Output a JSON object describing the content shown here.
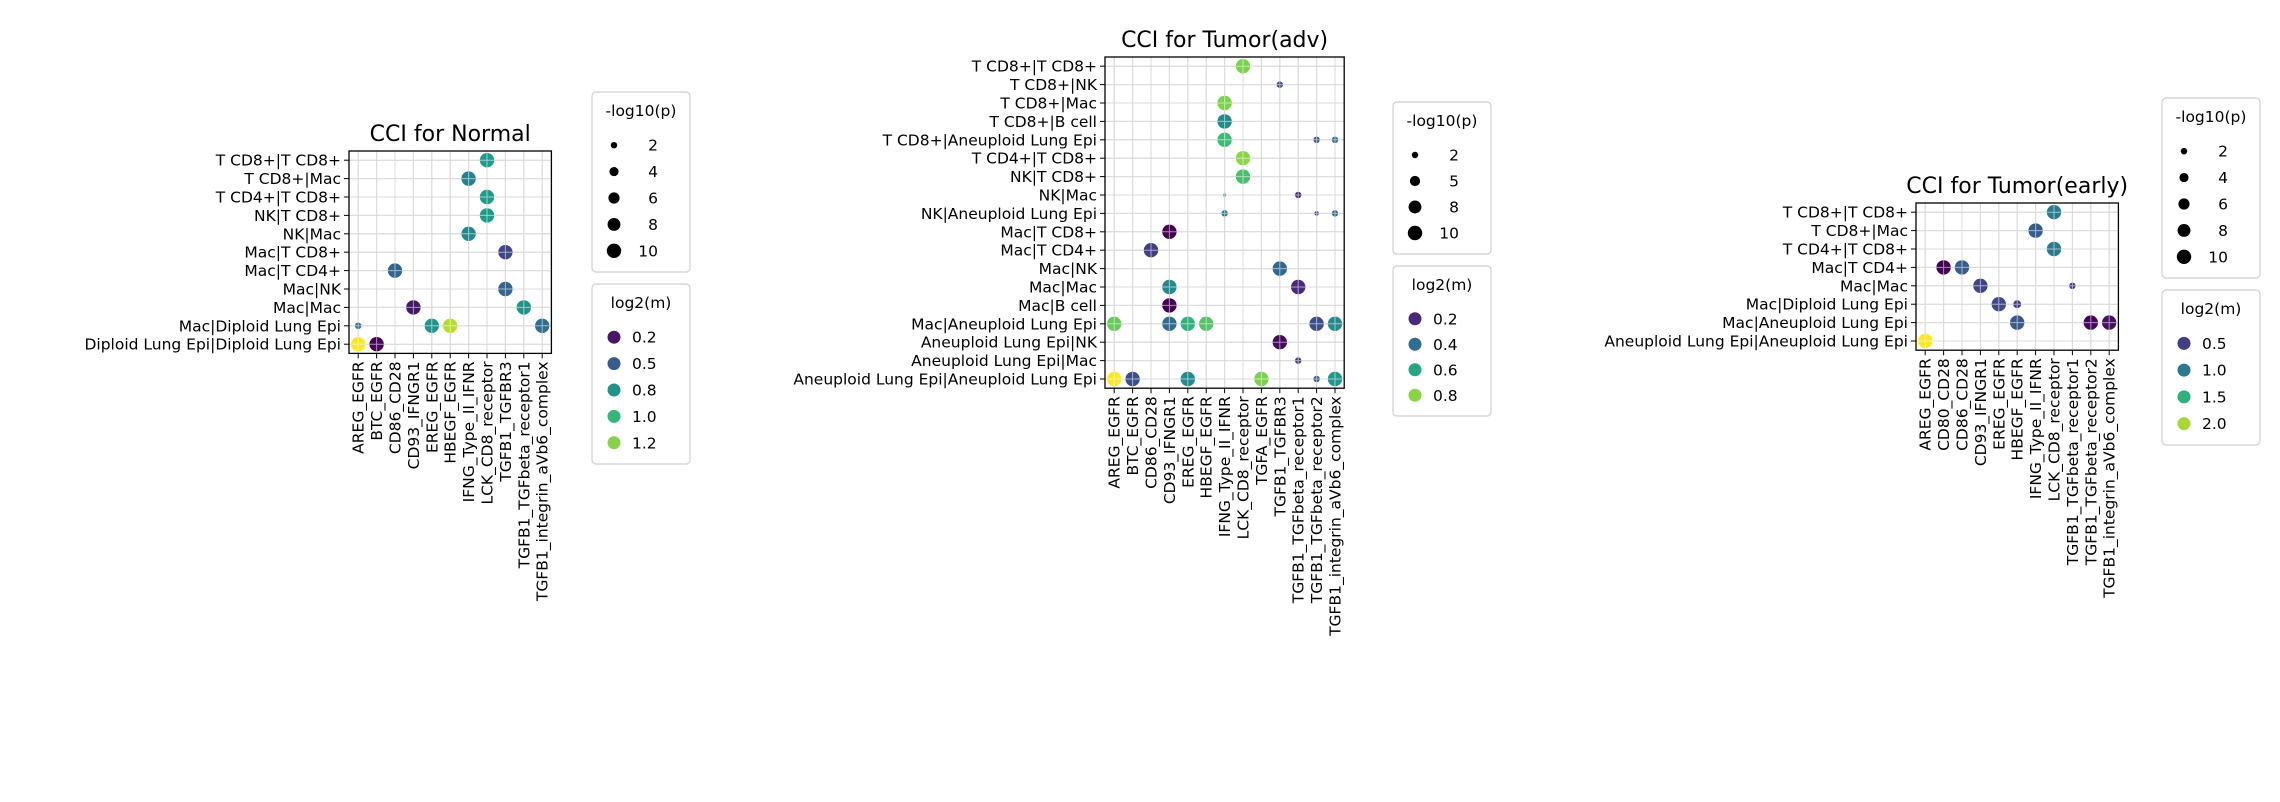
{
  "chart_data": [
    {
      "type": "scatter",
      "title": "CCI for Normal",
      "x_categories": [
        "AREG_EGFR",
        "BTC_EGFR",
        "CD86_CD28",
        "CD93_IFNGR1",
        "EREG_EGFR",
        "HBEGF_EGFR",
        "IFNG_Type_II_IFNR",
        "LCK_CD8_receptor",
        "TGFB1_TGFBR3",
        "TGFB1_TGFbeta_receptor1",
        "TGFB1_integrin_aVb6_complex"
      ],
      "y_categories": [
        "T CD8+|T CD8+",
        "T CD8+|Mac",
        "T CD4+|T CD8+",
        "NK|T CD8+",
        "NK|Mac",
        "Mac|T CD8+",
        "Mac|T CD4+",
        "Mac|NK",
        "Mac|Mac",
        "Mac|Diploid Lung Epi",
        "Diploid Lung Epi|Diploid Lung Epi"
      ],
      "points": [
        {
          "x": "LCK_CD8_receptor",
          "y": "T CD8+|T CD8+",
          "neglog10p": 10,
          "log2m": 0.85
        },
        {
          "x": "IFNG_Type_II_IFNR",
          "y": "T CD8+|Mac",
          "neglog10p": 10,
          "log2m": 0.7
        },
        {
          "x": "LCK_CD8_receptor",
          "y": "T CD4+|T CD8+",
          "neglog10p": 10,
          "log2m": 0.85
        },
        {
          "x": "LCK_CD8_receptor",
          "y": "NK|T CD8+",
          "neglog10p": 10,
          "log2m": 0.85
        },
        {
          "x": "IFNG_Type_II_IFNR",
          "y": "NK|Mac",
          "neglog10p": 10,
          "log2m": 0.75
        },
        {
          "x": "TGFB1_TGFBR3",
          "y": "Mac|T CD8+",
          "neglog10p": 10,
          "log2m": 0.4
        },
        {
          "x": "CD86_CD28",
          "y": "Mac|T CD4+",
          "neglog10p": 10,
          "log2m": 0.55
        },
        {
          "x": "TGFB1_TGFBR3",
          "y": "Mac|NK",
          "neglog10p": 10,
          "log2m": 0.55
        },
        {
          "x": "CD93_IFNGR1",
          "y": "Mac|Mac",
          "neglog10p": 10,
          "log2m": 0.2
        },
        {
          "x": "TGFB1_TGFbeta_receptor1",
          "y": "Mac|Mac",
          "neglog10p": 10,
          "log2m": 0.8
        },
        {
          "x": "AREG_EGFR",
          "y": "Mac|Diploid Lung Epi",
          "neglog10p": 2,
          "log2m": 0.6
        },
        {
          "x": "EREG_EGFR",
          "y": "Mac|Diploid Lung Epi",
          "neglog10p": 10,
          "log2m": 0.8
        },
        {
          "x": "HBEGF_EGFR",
          "y": "Mac|Diploid Lung Epi",
          "neglog10p": 10,
          "log2m": 1.3
        },
        {
          "x": "TGFB1_integrin_aVb6_complex",
          "y": "Mac|Diploid Lung Epi",
          "neglog10p": 10,
          "log2m": 0.6
        },
        {
          "x": "AREG_EGFR",
          "y": "Diploid Lung Epi|Diploid Lung Epi",
          "neglog10p": 10,
          "log2m": 1.45
        },
        {
          "x": "BTC_EGFR",
          "y": "Diploid Lung Epi|Diploid Lung Epi",
          "neglog10p": 10,
          "log2m": 0.12
        }
      ],
      "size_legend": {
        "title": "-log10(p)",
        "labels": [
          "2",
          "4",
          "6",
          "8",
          "10"
        ],
        "values": [
          2,
          4,
          6,
          8,
          10
        ]
      },
      "color_legend": {
        "title": "log2(m)",
        "labels": [
          "0.2",
          "0.5",
          "0.8",
          "1.0",
          "1.2"
        ],
        "values": [
          0.2,
          0.5,
          0.8,
          1.0,
          1.2
        ],
        "range": [
          0.12,
          1.45
        ]
      },
      "grid": true
    },
    {
      "type": "scatter",
      "title": "CCI for Tumor(adv)",
      "x_categories": [
        "AREG_EGFR",
        "BTC_EGFR",
        "CD86_CD28",
        "CD93_IFNGR1",
        "EREG_EGFR",
        "HBEGF_EGFR",
        "IFNG_Type_II_IFNR",
        "LCK_CD8_receptor",
        "TGFA_EGFR",
        "TGFB1_TGFBR3",
        "TGFB1_TGFbeta_receptor1",
        "TGFB1_TGFbeta_receptor2",
        "TGFB1_integrin_aVb6_complex"
      ],
      "y_categories": [
        "T CD8+|T CD8+",
        "T CD8+|NK",
        "T CD8+|Mac",
        "T CD8+|B cell",
        "T CD8+|Aneuploid Lung Epi",
        "T CD4+|T CD8+",
        "NK|T CD8+",
        "NK|Mac",
        "NK|Aneuploid Lung Epi",
        "Mac|T CD8+",
        "Mac|T CD4+",
        "Mac|NK",
        "Mac|Mac",
        "Mac|B cell",
        "Mac|Aneuploid Lung Epi",
        "Aneuploid Lung Epi|NK",
        "Aneuploid Lung Epi|Mac",
        "Aneuploid Lung Epi|Aneuploid Lung Epi"
      ],
      "points": [
        {
          "x": "LCK_CD8_receptor",
          "y": "T CD8+|T CD8+",
          "neglog10p": 10,
          "log2m": 0.78
        },
        {
          "x": "TGFB1_TGFBR3",
          "y": "T CD8+|NK",
          "neglog10p": 2,
          "log2m": 0.3
        },
        {
          "x": "IFNG_Type_II_IFNR",
          "y": "T CD8+|Mac",
          "neglog10p": 10,
          "log2m": 0.78
        },
        {
          "x": "IFNG_Type_II_IFNR",
          "y": "T CD8+|B cell",
          "neglog10p": 10,
          "log2m": 0.5
        },
        {
          "x": "IFNG_Type_II_IFNR",
          "y": "T CD8+|Aneuploid Lung Epi",
          "neglog10p": 10,
          "log2m": 0.68
        },
        {
          "x": "TGFB1_TGFbeta_receptor2",
          "y": "T CD8+|Aneuploid Lung Epi",
          "neglog10p": 2,
          "log2m": 0.35
        },
        {
          "x": "TGFB1_integrin_aVb6_complex",
          "y": "T CD8+|Aneuploid Lung Epi",
          "neglog10p": 2,
          "log2m": 0.4
        },
        {
          "x": "LCK_CD8_receptor",
          "y": "T CD4+|T CD8+",
          "neglog10p": 10,
          "log2m": 0.8
        },
        {
          "x": "LCK_CD8_receptor",
          "y": "NK|T CD8+",
          "neglog10p": 10,
          "log2m": 0.7
        },
        {
          "x": "IFNG_Type_II_IFNR",
          "y": "NK|Mac",
          "neglog10p": 0.5,
          "log2m": 0.6
        },
        {
          "x": "TGFB1_TGFbeta_receptor1",
          "y": "NK|Mac",
          "neglog10p": 2,
          "log2m": 0.2
        },
        {
          "x": "IFNG_Type_II_IFNR",
          "y": "NK|Aneuploid Lung Epi",
          "neglog10p": 2,
          "log2m": 0.45
        },
        {
          "x": "TGFB1_TGFbeta_receptor2",
          "y": "NK|Aneuploid Lung Epi",
          "neglog10p": 1,
          "log2m": 0.3
        },
        {
          "x": "TGFB1_integrin_aVb6_complex",
          "y": "NK|Aneuploid Lung Epi",
          "neglog10p": 2,
          "log2m": 0.4
        },
        {
          "x": "CD93_IFNGR1",
          "y": "Mac|T CD8+",
          "neglog10p": 10,
          "log2m": 0.1
        },
        {
          "x": "CD86_CD28",
          "y": "Mac|T CD4+",
          "neglog10p": 10,
          "log2m": 0.25
        },
        {
          "x": "TGFB1_TGFBR3",
          "y": "Mac|NK",
          "neglog10p": 10,
          "log2m": 0.38
        },
        {
          "x": "CD93_IFNGR1",
          "y": "Mac|Mac",
          "neglog10p": 10,
          "log2m": 0.5
        },
        {
          "x": "TGFB1_TGFbeta_receptor1",
          "y": "Mac|Mac",
          "neglog10p": 10,
          "log2m": 0.2
        },
        {
          "x": "CD93_IFNGR1",
          "y": "Mac|B cell",
          "neglog10p": 10,
          "log2m": 0.1
        },
        {
          "x": "AREG_EGFR",
          "y": "Mac|Aneuploid Lung Epi",
          "neglog10p": 10,
          "log2m": 0.75
        },
        {
          "x": "CD93_IFNGR1",
          "y": "Mac|Aneuploid Lung Epi",
          "neglog10p": 10,
          "log2m": 0.4
        },
        {
          "x": "EREG_EGFR",
          "y": "Mac|Aneuploid Lung Epi",
          "neglog10p": 10,
          "log2m": 0.65
        },
        {
          "x": "HBEGF_EGFR",
          "y": "Mac|Aneuploid Lung Epi",
          "neglog10p": 10,
          "log2m": 0.72
        },
        {
          "x": "TGFB1_TGFbeta_receptor2",
          "y": "Mac|Aneuploid Lung Epi",
          "neglog10p": 10,
          "log2m": 0.3
        },
        {
          "x": "TGFB1_integrin_aVb6_complex",
          "y": "Mac|Aneuploid Lung Epi",
          "neglog10p": 10,
          "log2m": 0.5
        },
        {
          "x": "TGFB1_TGFBR3",
          "y": "Aneuploid Lung Epi|NK",
          "neglog10p": 10,
          "log2m": 0.12
        },
        {
          "x": "TGFB1_TGFbeta_receptor1",
          "y": "Aneuploid Lung Epi|Mac",
          "neglog10p": 2,
          "log2m": 0.25
        },
        {
          "x": "AREG_EGFR",
          "y": "Aneuploid Lung Epi|Aneuploid Lung Epi",
          "neglog10p": 10,
          "log2m": 0.95
        },
        {
          "x": "BTC_EGFR",
          "y": "Aneuploid Lung Epi|Aneuploid Lung Epi",
          "neglog10p": 10,
          "log2m": 0.3
        },
        {
          "x": "EREG_EGFR",
          "y": "Aneuploid Lung Epi|Aneuploid Lung Epi",
          "neglog10p": 10,
          "log2m": 0.5
        },
        {
          "x": "TGFA_EGFR",
          "y": "Aneuploid Lung Epi|Aneuploid Lung Epi",
          "neglog10p": 10,
          "log2m": 0.78
        },
        {
          "x": "TGFB1_TGFbeta_receptor2",
          "y": "Aneuploid Lung Epi|Aneuploid Lung Epi",
          "neglog10p": 2,
          "log2m": 0.35
        },
        {
          "x": "TGFB1_integrin_aVb6_complex",
          "y": "Aneuploid Lung Epi|Aneuploid Lung Epi",
          "neglog10p": 10,
          "log2m": 0.55
        }
      ],
      "size_legend": {
        "title": "-log10(p)",
        "labels": [
          "2",
          "5",
          "8",
          "10"
        ],
        "values": [
          2,
          5,
          8,
          10
        ]
      },
      "color_legend": {
        "title": "log2(m)",
        "labels": [
          "0.2",
          "0.4",
          "0.6",
          "0.8"
        ],
        "values": [
          0.2,
          0.4,
          0.6,
          0.8
        ],
        "range": [
          0.1,
          0.95
        ]
      },
      "grid": true
    },
    {
      "type": "scatter",
      "title": "CCI for Tumor(early)",
      "x_categories": [
        "AREG_EGFR",
        "CD80_CD28",
        "CD86_CD28",
        "CD93_IFNGR1",
        "EREG_EGFR",
        "HBEGF_EGFR",
        "IFNG_Type_II_IFNR",
        "LCK_CD8_receptor",
        "TGFB1_TGFbeta_receptor1",
        "TGFB1_TGFbeta_receptor2",
        "TGFB1_integrin_aVb6_complex"
      ],
      "y_categories": [
        "T CD8+|T CD8+",
        "T CD8+|Mac",
        "T CD4+|T CD8+",
        "Mac|T CD4+",
        "Mac|Mac",
        "Mac|Diploid Lung Epi",
        "Mac|Aneuploid Lung Epi",
        "Aneuploid Lung Epi|Aneuploid Lung Epi"
      ],
      "points": [
        {
          "x": "LCK_CD8_receptor",
          "y": "T CD8+|T CD8+",
          "neglog10p": 10,
          "log2m": 1.0
        },
        {
          "x": "IFNG_Type_II_IFNR",
          "y": "T CD8+|Mac",
          "neglog10p": 10,
          "log2m": 0.75
        },
        {
          "x": "LCK_CD8_receptor",
          "y": "T CD4+|T CD8+",
          "neglog10p": 10,
          "log2m": 1.0
        },
        {
          "x": "CD80_CD28",
          "y": "Mac|T CD4+",
          "neglog10p": 10,
          "log2m": 0.1
        },
        {
          "x": "CD86_CD28",
          "y": "Mac|T CD4+",
          "neglog10p": 10,
          "log2m": 0.75
        },
        {
          "x": "TGFB1_TGFbeta_receptor1",
          "y": "Mac|Mac",
          "neglog10p": 2,
          "log2m": 0.5
        },
        {
          "x": "CD93_IFNGR1",
          "y": "Mac|Mac",
          "neglog10p": 10,
          "log2m": 0.55
        },
        {
          "x": "EREG_EGFR",
          "y": "Mac|Diploid Lung Epi",
          "neglog10p": 10,
          "log2m": 0.6
        },
        {
          "x": "HBEGF_EGFR",
          "y": "Mac|Diploid Lung Epi",
          "neglog10p": 3,
          "log2m": 0.5
        },
        {
          "x": "HBEGF_EGFR",
          "y": "Mac|Aneuploid Lung Epi",
          "neglog10p": 10,
          "log2m": 0.7
        },
        {
          "x": "TGFB1_TGFbeta_receptor2",
          "y": "Mac|Aneuploid Lung Epi",
          "neglog10p": 10,
          "log2m": 0.15
        },
        {
          "x": "TGFB1_integrin_aVb6_complex",
          "y": "Mac|Aneuploid Lung Epi",
          "neglog10p": 10,
          "log2m": 0.2
        },
        {
          "x": "AREG_EGFR",
          "y": "Aneuploid Lung Epi|Aneuploid Lung Epi",
          "neglog10p": 10,
          "log2m": 2.3
        }
      ],
      "size_legend": {
        "title": "-log10(p)",
        "labels": [
          "2",
          "4",
          "6",
          "8",
          "10"
        ],
        "values": [
          2,
          4,
          6,
          8,
          10
        ]
      },
      "color_legend": {
        "title": "log2(m)",
        "labels": [
          "0.5",
          "1.0",
          "1.5",
          "2.0"
        ],
        "values": [
          0.5,
          1.0,
          1.5,
          2.0
        ],
        "range": [
          0.1,
          2.3
        ]
      },
      "grid": true
    }
  ]
}
